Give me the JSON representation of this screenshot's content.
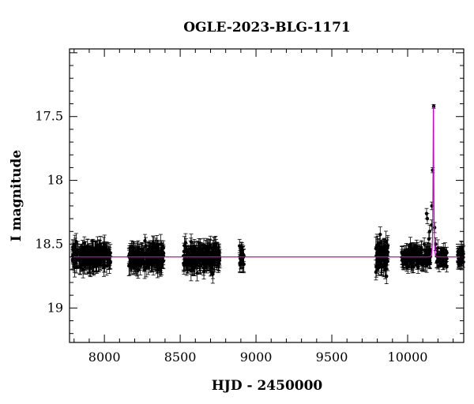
{
  "chart_data": {
    "type": "scatter",
    "title": "OGLE-2023-BLG-1171",
    "xlabel": "HJD - 2450000",
    "ylabel": "I magnitude",
    "xlim": [
      7770,
      10370
    ],
    "ylim": [
      19.27,
      16.97
    ],
    "y_inverted": true,
    "xticks": [
      8000,
      8500,
      9000,
      9500,
      10000
    ],
    "xtick_labels": [
      "8000",
      "8500",
      "9000",
      "9500",
      "10000"
    ],
    "yticks": [
      17.5,
      18,
      18.5,
      19
    ],
    "ytick_labels": [
      "17.5",
      "18",
      "18.5",
      "19"
    ],
    "grid": false,
    "colors": {
      "points": "#000000",
      "model": "#cc00cc"
    },
    "series": [
      {
        "kind": "points_with_errorbars",
        "baseline_mag": 18.6,
        "segments": [
          {
            "x_range": [
              7790,
              8040
            ],
            "scatter": 0.1,
            "err": 0.06
          },
          {
            "x_range": [
              8160,
              8390
            ],
            "scatter": 0.1,
            "err": 0.06
          },
          {
            "x_range": [
              8520,
              8760
            ],
            "scatter": 0.11,
            "err": 0.06
          },
          {
            "x_range": [
              8890,
              8920
            ],
            "scatter": 0.08,
            "err": 0.06
          },
          {
            "x_range": [
              9790,
              9870
            ],
            "scatter": 0.14,
            "err": 0.07
          },
          {
            "x_range": [
              9960,
              10150
            ],
            "scatter": 0.07,
            "err": 0.05
          },
          {
            "x_range": [
              10190,
              10260
            ],
            "scatter": 0.06,
            "err": 0.05
          },
          {
            "x_range": [
              10330,
              10370
            ],
            "scatter": 0.06,
            "err": 0.05
          }
        ],
        "event_points": [
          {
            "x": 10172,
            "y": 17.42,
            "err": 0.015
          },
          {
            "x": 10165,
            "y": 17.92,
            "err": 0.02
          },
          {
            "x": 10160,
            "y": 18.2,
            "err": 0.03
          },
          {
            "x": 10158,
            "y": 18.35,
            "err": 0.04
          },
          {
            "x": 10178,
            "y": 18.37,
            "err": 0.04
          },
          {
            "x": 10125,
            "y": 18.26,
            "err": 0.04
          },
          {
            "x": 10130,
            "y": 18.3,
            "err": 0.04
          },
          {
            "x": 10110,
            "y": 18.5,
            "err": 0.05
          },
          {
            "x": 10140,
            "y": 18.46,
            "err": 0.05
          },
          {
            "x": 10145,
            "y": 18.4,
            "err": 0.05
          },
          {
            "x": 10150,
            "y": 18.55,
            "err": 0.05
          },
          {
            "x": 10185,
            "y": 18.5,
            "err": 0.05
          }
        ]
      },
      {
        "kind": "model_curve",
        "baseline_mag": 18.6,
        "peak_x": 10170,
        "peak_mag": 17.42,
        "tE_days": 4.5
      }
    ]
  }
}
